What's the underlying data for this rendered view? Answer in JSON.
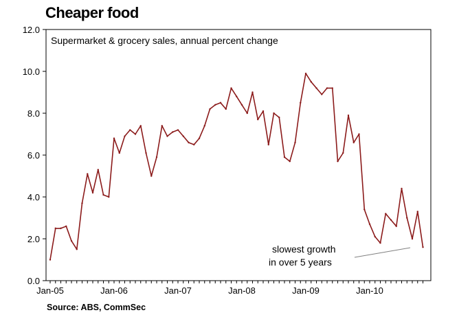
{
  "title": "Cheaper food",
  "source": "Source: ABS, CommSec",
  "colors": {
    "series": "#8b1a1a",
    "axis": "#000000",
    "annotation_line": "#808080"
  },
  "chart_data": {
    "type": "line",
    "subtitle": "Supermarket & grocery sales, annual percent change",
    "xlabel": "",
    "ylabel": "",
    "ylim": [
      0,
      12
    ],
    "yticks": [
      "0.0",
      "2.0",
      "4.0",
      "6.0",
      "8.0",
      "10.0",
      "12.0"
    ],
    "x_tick_labels": [
      "Jan-05",
      "Jan-06",
      "Jan-07",
      "Jan-08",
      "Jan-09",
      "Jan-10"
    ],
    "grid": false,
    "annotation": {
      "text_line1": "slowest growth",
      "text_line2": "in over 5 years"
    },
    "x_start": "Jan-05",
    "x_frequency": "monthly",
    "values": [
      1.0,
      2.5,
      2.5,
      2.6,
      1.9,
      1.5,
      3.7,
      5.1,
      4.2,
      5.3,
      4.1,
      4.0,
      6.8,
      6.1,
      6.9,
      7.2,
      7.0,
      7.4,
      6.1,
      5.0,
      5.9,
      7.4,
      6.9,
      7.1,
      7.2,
      6.9,
      6.6,
      6.5,
      6.8,
      7.4,
      8.2,
      8.4,
      8.5,
      8.2,
      9.2,
      8.8,
      8.4,
      8.0,
      9.0,
      7.7,
      8.1,
      6.5,
      8.0,
      7.8,
      5.9,
      5.7,
      6.6,
      8.5,
      9.9,
      9.5,
      9.2,
      8.9,
      9.2,
      9.2,
      5.7,
      6.1,
      7.9,
      6.6,
      7.0,
      3.4,
      2.7,
      2.1,
      1.8,
      3.2,
      2.9,
      2.6,
      4.4,
      3.0,
      2.0,
      3.3,
      1.6
    ]
  }
}
